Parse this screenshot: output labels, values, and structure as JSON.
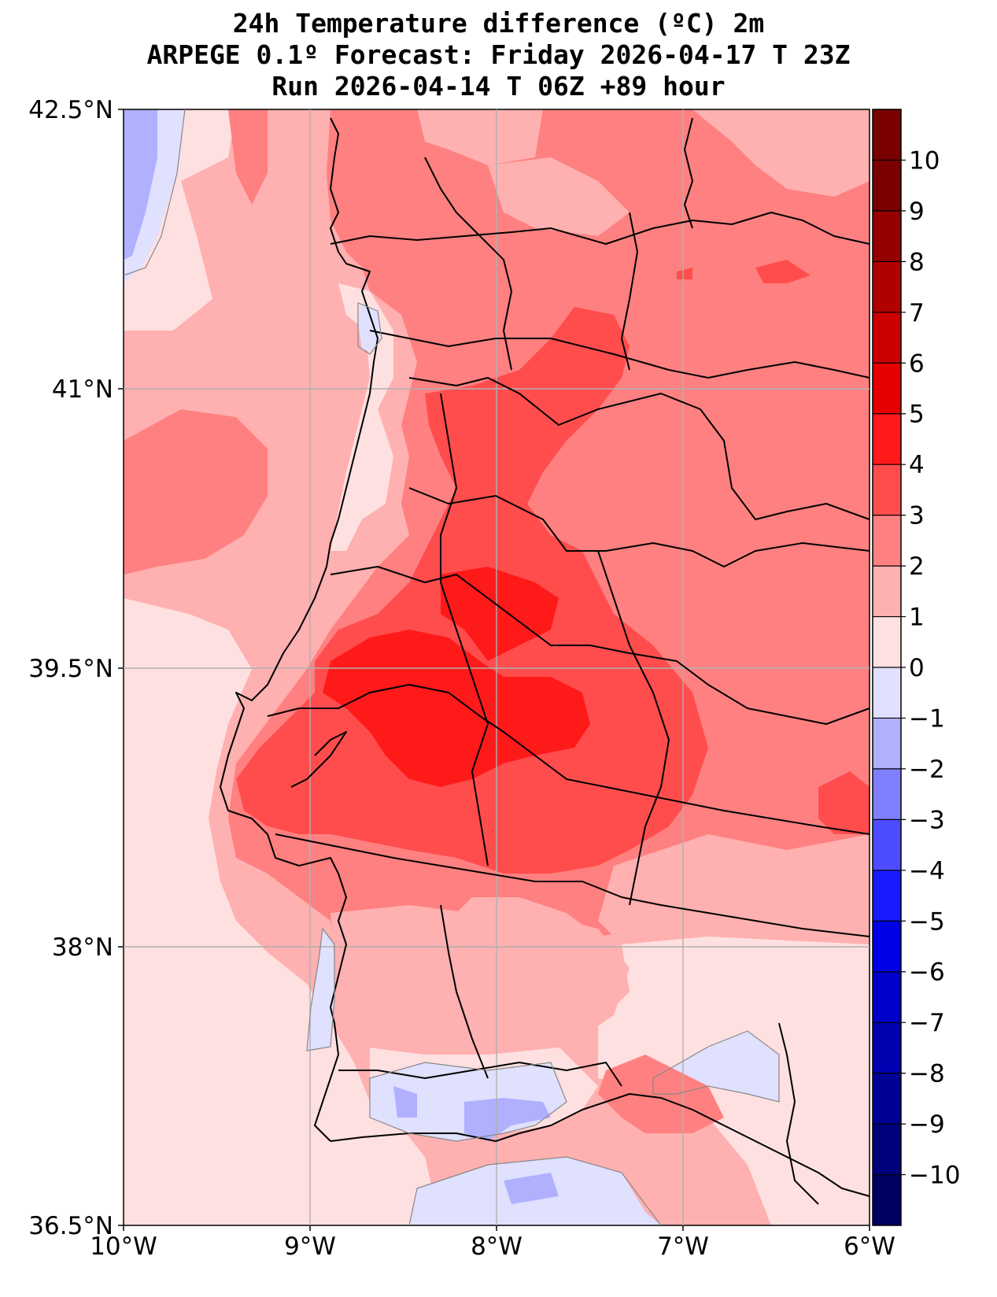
{
  "title": {
    "line1": "24h Temperature difference (ºC) 2m",
    "line2": "ARPEGE 0.1º Forecast: Friday 2026-04-17 T 23Z",
    "line3": "Run 2026-04-14 T 06Z +89 hour"
  },
  "axes": {
    "lat_labels": [
      "42.5°N",
      "41°N",
      "39.5°N",
      "38°N",
      "36.5°N"
    ],
    "lon_labels": [
      "10°W",
      "9°W",
      "8°W",
      "7°W",
      "6°W"
    ]
  },
  "colorbar": {
    "tick_labels": [
      "10",
      "9",
      "8",
      "7",
      "6",
      "5",
      "4",
      "3",
      "2",
      "1",
      "0",
      "−1",
      "−2",
      "−3",
      "−4",
      "−5",
      "−6",
      "−7",
      "−8",
      "−9",
      "−10"
    ],
    "colors": [
      "#7a0000",
      "#950000",
      "#b00000",
      "#cb0000",
      "#e60000",
      "#ff1a1a",
      "#ff4d4d",
      "#ff8080",
      "#ffb0b0",
      "#ffe0e0",
      "#e0e0ff",
      "#b0b0ff",
      "#8080ff",
      "#4d4dff",
      "#1a1aff",
      "#0000e6",
      "#0000cb",
      "#0000b0",
      "#000095",
      "#00007a",
      "#000060"
    ]
  },
  "colors": {
    "band_0_1": "#ffe0e0",
    "band_1_2": "#ffb0b0",
    "band_2_3": "#ff8080",
    "band_3_4": "#ff4d4d",
    "band_4_5": "#ff1a1a",
    "band_m1_0": "#e0e0ff",
    "band_m2_m1": "#b0b0ff"
  }
}
